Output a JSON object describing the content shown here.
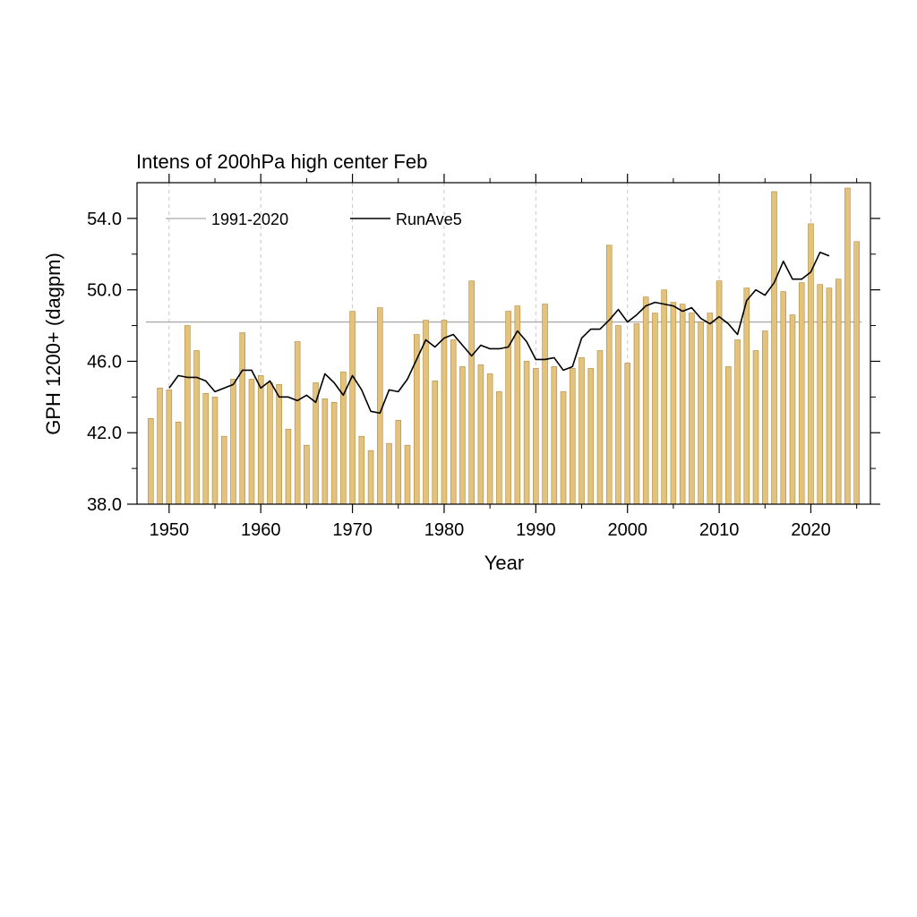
{
  "chart_data": {
    "type": "bar",
    "title": "Intens of 200hPa high center Feb",
    "xlabel": "Year",
    "ylabel": "GPH 1200+ (dagpm)",
    "xlim": [
      1946.5,
      2026.5
    ],
    "ylim": [
      38.0,
      56.0
    ],
    "x_ticks": [
      1950,
      1960,
      1970,
      1980,
      1990,
      2000,
      2010,
      2020
    ],
    "y_ticks": [
      38.0,
      42.0,
      46.0,
      50.0,
      54.0
    ],
    "y_tick_labels": [
      "38.0",
      "42.0",
      "46.0",
      "50.0",
      "54.0"
    ],
    "grid": "vertical dashed at major x ticks",
    "legend_placement": "top-left",
    "colors": {
      "bar_fill": "#e3c27d",
      "bar_edge": "#b08a3c",
      "running_mean": "#000000",
      "climatology": "#aaaaaa"
    },
    "climatology": {
      "name": "1991-2020",
      "value": 48.2
    },
    "running_mean_name": "RunAve5",
    "years": [
      1948,
      1949,
      1950,
      1951,
      1952,
      1953,
      1954,
      1955,
      1956,
      1957,
      1958,
      1959,
      1960,
      1961,
      1962,
      1963,
      1964,
      1965,
      1966,
      1967,
      1968,
      1969,
      1970,
      1971,
      1972,
      1973,
      1974,
      1975,
      1976,
      1977,
      1978,
      1979,
      1980,
      1981,
      1982,
      1983,
      1984,
      1985,
      1986,
      1987,
      1988,
      1989,
      1990,
      1991,
      1992,
      1993,
      1994,
      1995,
      1996,
      1997,
      1998,
      1999,
      2000,
      2001,
      2002,
      2003,
      2004,
      2005,
      2006,
      2007,
      2008,
      2009,
      2010,
      2011,
      2012,
      2013,
      2014,
      2015,
      2016,
      2017,
      2018,
      2019,
      2020,
      2021,
      2022,
      2023,
      2024,
      2025
    ],
    "values": [
      42.8,
      44.5,
      44.4,
      42.6,
      48.0,
      46.6,
      44.2,
      44.0,
      41.8,
      45.0,
      47.6,
      45.0,
      45.2,
      44.8,
      44.7,
      42.2,
      47.1,
      41.3,
      44.8,
      43.9,
      43.7,
      45.4,
      48.8,
      41.8,
      41.0,
      49.0,
      41.4,
      42.7,
      41.3,
      47.5,
      48.3,
      44.9,
      48.3,
      47.2,
      45.7,
      50.5,
      45.8,
      45.3,
      44.3,
      48.8,
      49.1,
      46.0,
      45.6,
      49.2,
      45.7,
      44.3,
      45.6,
      46.2,
      45.6,
      46.6,
      52.5,
      48.0,
      45.9,
      48.1,
      49.6,
      48.7,
      50.0,
      49.3,
      49.2,
      48.7,
      48.2,
      48.7,
      50.5,
      45.7,
      47.2,
      50.1,
      46.6,
      47.7,
      55.5,
      49.9,
      48.6,
      50.4,
      53.7,
      50.3,
      50.1,
      50.6,
      55.7,
      52.7
    ],
    "running_mean": [
      {
        "x": 1950,
        "y": 44.5
      },
      {
        "x": 1951,
        "y": 45.2
      },
      {
        "x": 1952,
        "y": 45.1
      },
      {
        "x": 1953,
        "y": 45.1
      },
      {
        "x": 1954,
        "y": 44.9
      },
      {
        "x": 1955,
        "y": 44.3
      },
      {
        "x": 1956,
        "y": 44.5
      },
      {
        "x": 1957,
        "y": 44.7
      },
      {
        "x": 1958,
        "y": 45.5
      },
      {
        "x": 1959,
        "y": 45.5
      },
      {
        "x": 1960,
        "y": 44.5
      },
      {
        "x": 1961,
        "y": 44.9
      },
      {
        "x": 1962,
        "y": 44.0
      },
      {
        "x": 1963,
        "y": 44.0
      },
      {
        "x": 1964,
        "y": 43.8
      },
      {
        "x": 1965,
        "y": 44.1
      },
      {
        "x": 1966,
        "y": 43.7
      },
      {
        "x": 1967,
        "y": 45.3
      },
      {
        "x": 1968,
        "y": 44.8
      },
      {
        "x": 1969,
        "y": 44.1
      },
      {
        "x": 1970,
        "y": 45.2
      },
      {
        "x": 1971,
        "y": 44.4
      },
      {
        "x": 1972,
        "y": 43.2
      },
      {
        "x": 1973,
        "y": 43.1
      },
      {
        "x": 1974,
        "y": 44.4
      },
      {
        "x": 1975,
        "y": 44.3
      },
      {
        "x": 1976,
        "y": 45.0
      },
      {
        "x": 1977,
        "y": 46.1
      },
      {
        "x": 1978,
        "y": 47.2
      },
      {
        "x": 1979,
        "y": 46.8
      },
      {
        "x": 1980,
        "y": 47.3
      },
      {
        "x": 1981,
        "y": 47.5
      },
      {
        "x": 1982,
        "y": 46.9
      },
      {
        "x": 1983,
        "y": 46.3
      },
      {
        "x": 1984,
        "y": 46.9
      },
      {
        "x": 1985,
        "y": 46.7
      },
      {
        "x": 1986,
        "y": 46.7
      },
      {
        "x": 1987,
        "y": 46.8
      },
      {
        "x": 1988,
        "y": 47.7
      },
      {
        "x": 1989,
        "y": 47.1
      },
      {
        "x": 1990,
        "y": 46.1
      },
      {
        "x": 1991,
        "y": 46.1
      },
      {
        "x": 1992,
        "y": 46.2
      },
      {
        "x": 1993,
        "y": 45.5
      },
      {
        "x": 1994,
        "y": 45.7
      },
      {
        "x": 1995,
        "y": 47.3
      },
      {
        "x": 1996,
        "y": 47.8
      },
      {
        "x": 1997,
        "y": 47.8
      },
      {
        "x": 1998,
        "y": 48.3
      },
      {
        "x": 1999,
        "y": 48.9
      },
      {
        "x": 2000,
        "y": 48.2
      },
      {
        "x": 2001,
        "y": 48.6
      },
      {
        "x": 2002,
        "y": 49.1
      },
      {
        "x": 2003,
        "y": 49.3
      },
      {
        "x": 2004,
        "y": 49.2
      },
      {
        "x": 2005,
        "y": 49.1
      },
      {
        "x": 2006,
        "y": 48.8
      },
      {
        "x": 2007,
        "y": 49.0
      },
      {
        "x": 2008,
        "y": 48.4
      },
      {
        "x": 2009,
        "y": 48.1
      },
      {
        "x": 2010,
        "y": 48.5
      },
      {
        "x": 2011,
        "y": 48.1
      },
      {
        "x": 2012,
        "y": 47.5
      },
      {
        "x": 2013,
        "y": 49.4
      },
      {
        "x": 2014,
        "y": 50.0
      },
      {
        "x": 2015,
        "y": 49.7
      },
      {
        "x": 2016,
        "y": 50.4
      },
      {
        "x": 2017,
        "y": 51.6
      },
      {
        "x": 2018,
        "y": 50.6
      },
      {
        "x": 2019,
        "y": 50.6
      },
      {
        "x": 2020,
        "y": 51.0
      },
      {
        "x": 2021,
        "y": 52.1
      },
      {
        "x": 2022,
        "y": 51.9
      }
    ]
  }
}
